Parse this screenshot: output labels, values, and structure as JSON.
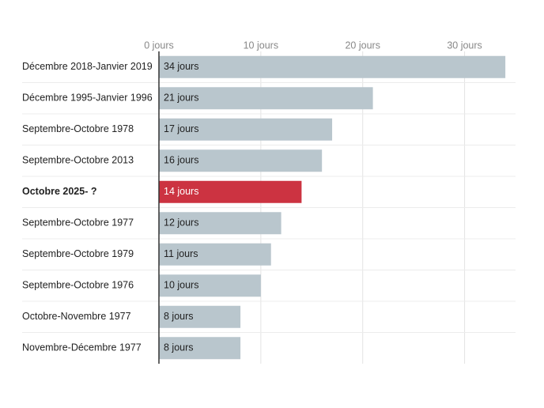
{
  "chart_data": {
    "type": "hbar",
    "categories": [
      "Décembre 2018-Janvier 2019",
      "Décembre 1995-Janvier 1996",
      "Septembre-Octobre 1978",
      "Septembre-Octobre 2013",
      "Octobre 2025- ?",
      "Septembre-Octobre 1977",
      "Septembre-Octobre 1979",
      "Septembre-Octobre 1976",
      "Octobre-Novembre 1977",
      "Novembre-Décembre 1977"
    ],
    "values": [
      34,
      21,
      17,
      16,
      14,
      12,
      11,
      10,
      8,
      8
    ],
    "value_labels": [
      "34 jours",
      "21 jours",
      "17 jours",
      "16 jours",
      "14 jours",
      "12 jours",
      "11 jours",
      "10 jours",
      "8 jours",
      "8 jours"
    ],
    "colors": [
      "#b9c6cd",
      "#b9c6cd",
      "#b9c6cd",
      "#b9c6cd",
      "#cc3341",
      "#b9c6cd",
      "#b9c6cd",
      "#b9c6cd",
      "#b9c6cd",
      "#b9c6cd"
    ],
    "xlim": [
      0,
      35
    ],
    "xticks": [
      {
        "value": 0,
        "label": "0 jours"
      },
      {
        "value": 10,
        "label": "10 jours"
      },
      {
        "value": 20,
        "label": "20 jours"
      },
      {
        "value": 30,
        "label": "30 jours"
      }
    ],
    "grid": true
  }
}
